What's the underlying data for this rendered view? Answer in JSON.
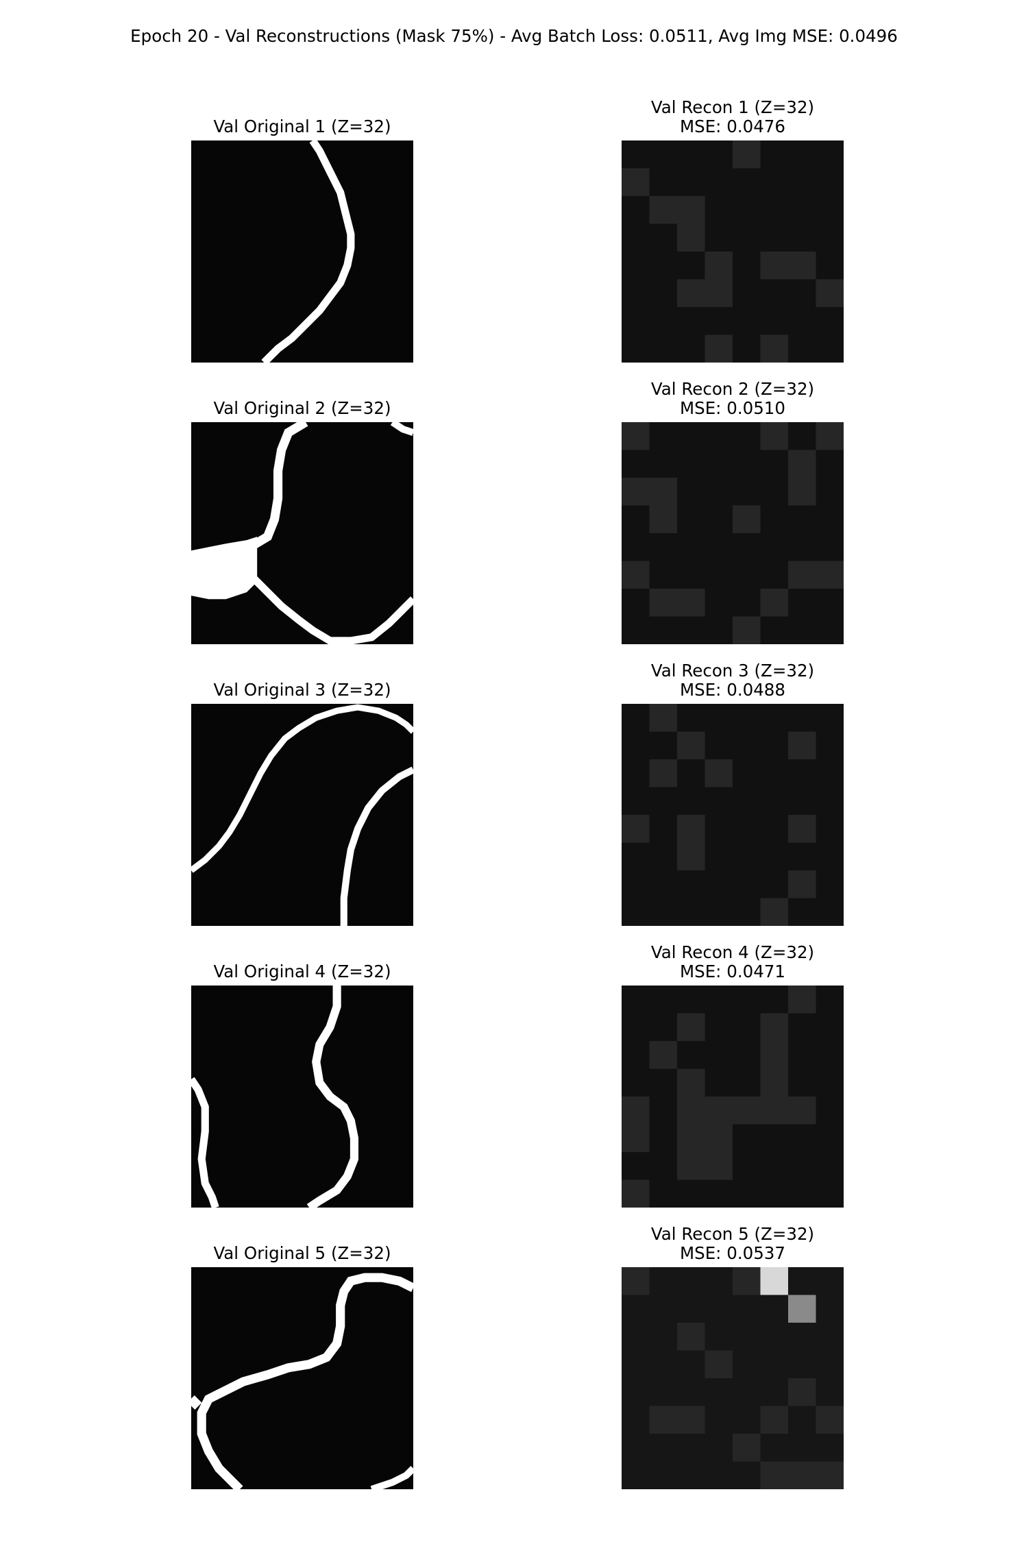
{
  "suptitle": "Epoch 20 - Val Reconstructions (Mask 75%) - Avg Batch Loss: 0.0511, Avg Img MSE: 0.0496",
  "rows": [
    {
      "original": {
        "title": "Val Original 1 (Z=32)",
        "content": "binary slice, white curve on black"
      },
      "recon": {
        "title": "Val Recon 1 (Z=32)",
        "mse": "MSE: 0.0476"
      },
      "recon_bright_patches": [
        [
          0,
          4
        ],
        [
          1,
          0
        ],
        [
          2,
          1
        ],
        [
          2,
          2
        ],
        [
          3,
          2
        ],
        [
          4,
          3
        ],
        [
          4,
          5
        ],
        [
          4,
          6
        ],
        [
          5,
          2
        ],
        [
          5,
          3
        ],
        [
          5,
          7
        ],
        [
          7,
          3
        ],
        [
          7,
          5
        ]
      ]
    },
    {
      "original": {
        "title": "Val Original 2 (Z=32)",
        "content": "binary slice, white junction on black"
      },
      "recon": {
        "title": "Val Recon 2 (Z=32)",
        "mse": "MSE: 0.0510"
      },
      "recon_bright_patches": [
        [
          0,
          0
        ],
        [
          0,
          7
        ],
        [
          0,
          5
        ],
        [
          1,
          6
        ],
        [
          2,
          0
        ],
        [
          2,
          1
        ],
        [
          2,
          6
        ],
        [
          3,
          1
        ],
        [
          3,
          4
        ],
        [
          5,
          0
        ],
        [
          5,
          6
        ],
        [
          5,
          7
        ],
        [
          6,
          1
        ],
        [
          6,
          2
        ],
        [
          6,
          5
        ],
        [
          7,
          4
        ]
      ]
    },
    {
      "original": {
        "title": "Val Original 3 (Z=32)",
        "content": "binary slice, two white curves on black"
      },
      "recon": {
        "title": "Val Recon 3 (Z=32)",
        "mse": "MSE: 0.0488"
      },
      "recon_bright_patches": [
        [
          0,
          1
        ],
        [
          1,
          2
        ],
        [
          1,
          6
        ],
        [
          2,
          1
        ],
        [
          2,
          3
        ],
        [
          4,
          0
        ],
        [
          4,
          2
        ],
        [
          4,
          6
        ],
        [
          5,
          2
        ],
        [
          6,
          6
        ],
        [
          7,
          5
        ]
      ]
    },
    {
      "original": {
        "title": "Val Original 4 (Z=32)",
        "content": "binary slice, white curves on black"
      },
      "recon": {
        "title": "Val Recon 4 (Z=32)",
        "mse": "MSE: 0.0471"
      },
      "recon_bright_patches": [
        [
          0,
          6
        ],
        [
          1,
          2
        ],
        [
          1,
          5
        ],
        [
          2,
          1
        ],
        [
          2,
          5
        ],
        [
          3,
          2
        ],
        [
          3,
          5
        ],
        [
          4,
          0
        ],
        [
          4,
          2
        ],
        [
          4,
          3
        ],
        [
          4,
          4
        ],
        [
          4,
          5
        ],
        [
          4,
          6
        ],
        [
          5,
          0
        ],
        [
          5,
          2
        ],
        [
          5,
          3
        ],
        [
          6,
          2
        ],
        [
          6,
          3
        ],
        [
          7,
          0
        ]
      ]
    },
    {
      "original": {
        "title": "Val Original 5 (Z=32)",
        "content": "binary slice, white curve on black"
      },
      "recon": {
        "title": "Val Recon 5 (Z=32)",
        "mse": "MSE: 0.0537"
      },
      "recon_bright_patches": [
        [
          0,
          0
        ],
        [
          0,
          4
        ],
        [
          0,
          5
        ],
        [
          1,
          6
        ],
        [
          2,
          2
        ],
        [
          3,
          3
        ],
        [
          4,
          6
        ],
        [
          5,
          1
        ],
        [
          5,
          2
        ],
        [
          5,
          5
        ],
        [
          5,
          7
        ],
        [
          6,
          4
        ],
        [
          7,
          5
        ],
        [
          7,
          6
        ],
        [
          7,
          7
        ]
      ]
    }
  ],
  "colormap": "gray"
}
